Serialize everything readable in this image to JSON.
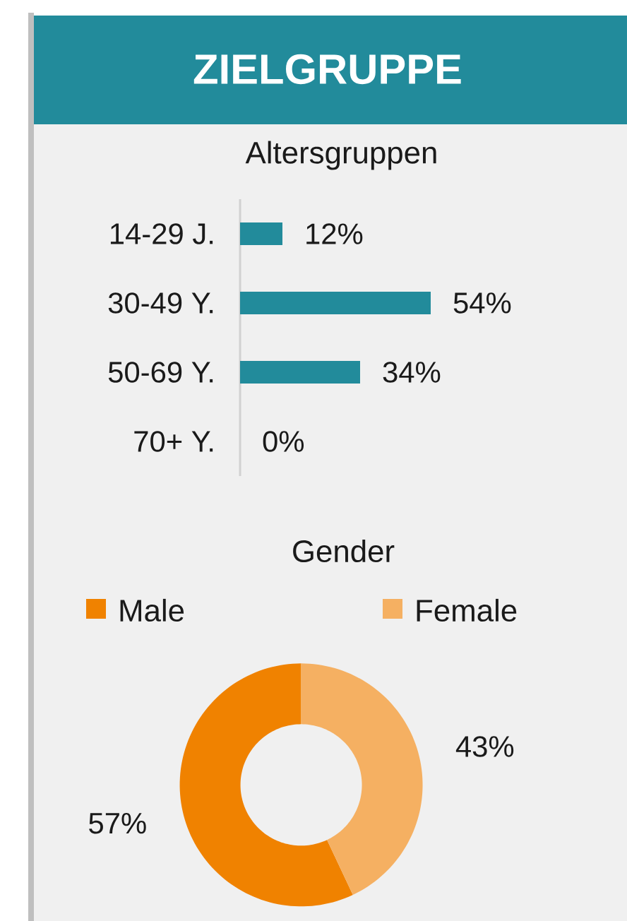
{
  "chart_data": [
    {
      "type": "bar",
      "orientation": "horizontal",
      "title": "ZIELGRUPPE",
      "subtitle": "Altersgruppen",
      "categories": [
        "14-29 J.",
        "30-49 Y.",
        "50-69 Y.",
        "70+ Y."
      ],
      "values": [
        12,
        54,
        34,
        0
      ],
      "color": "#228b9b",
      "value_labels": [
        "12%",
        "54%",
        "34%",
        "0%"
      ]
    },
    {
      "type": "donut",
      "title": "Gender",
      "categories": [
        "Male",
        "Female"
      ],
      "values": [
        57,
        43
      ],
      "colors": [
        "#f08200",
        "#f5b062"
      ],
      "value_labels": [
        "57%",
        "43%"
      ],
      "legend": "top"
    }
  ]
}
